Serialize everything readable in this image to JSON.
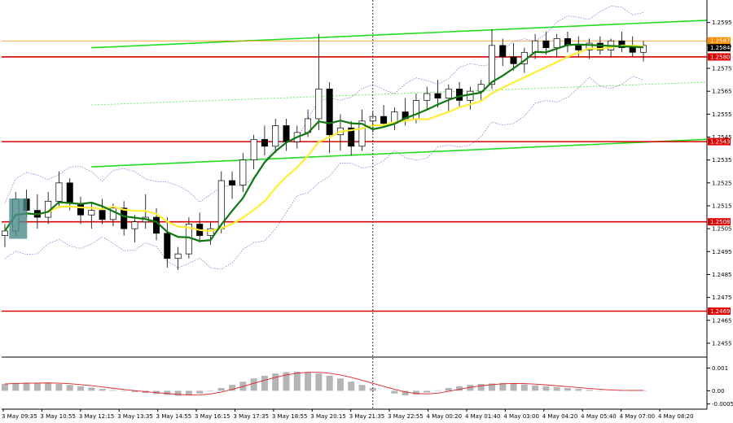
{
  "chart_data": {
    "type": "candlestick",
    "symbol": "",
    "main_panel": {
      "y_ticks": [
        "1.2595",
        "1.2585",
        "1.2575",
        "1.2565",
        "1.2555",
        "1.2545",
        "1.2535",
        "1.2525",
        "1.2515",
        "1.2505",
        "1.2495",
        "1.2485",
        "1.2475",
        "1.2465",
        "1.2455"
      ],
      "ylim": [
        1.245,
        1.2602
      ],
      "price_levels": [
        {
          "label": "1.2587",
          "value": 1.2587,
          "color": "#ff8c00",
          "style": "thin"
        },
        {
          "label": "1.2584",
          "value": 1.2584,
          "color": "#000000",
          "style": "current"
        },
        {
          "label": "1.2580",
          "value": 1.258,
          "color": "#dd0000",
          "style": "thick"
        },
        {
          "label": "1.2543",
          "value": 1.2543,
          "color": "#dd0000",
          "style": "thick"
        },
        {
          "label": "1.2508",
          "value": 1.2508,
          "color": "#dd0000",
          "style": "thick"
        },
        {
          "label": "1.2469",
          "value": 1.2469,
          "color": "#dd0000",
          "style": "thick"
        }
      ],
      "trend_lines": [
        {
          "color": "#22dd22",
          "style": "solid",
          "from": [
            8,
            1.2584
          ],
          "to": [
            75,
            1.2596
          ]
        },
        {
          "color": "#22dd22",
          "style": "solid",
          "from": [
            8,
            1.2532
          ],
          "to": [
            75,
            1.2544
          ]
        },
        {
          "color": "#66ee66",
          "style": "dotted",
          "from": [
            8,
            1.2559
          ],
          "to": [
            75,
            1.2569
          ]
        }
      ],
      "moving_averages": [
        {
          "color": "#ffee33",
          "period": 30
        },
        {
          "color": "#117711",
          "period": 14
        }
      ],
      "envelope": {
        "color": "#8866cc",
        "style": "dotted"
      },
      "candles": [
        {
          "o": 1.2502,
          "h": 1.2507,
          "l": 1.2497,
          "c": 1.2504
        },
        {
          "o": 1.2504,
          "h": 1.2521,
          "l": 1.2502,
          "c": 1.2518
        },
        {
          "o": 1.2518,
          "h": 1.2522,
          "l": 1.251,
          "c": 1.2513
        },
        {
          "o": 1.2513,
          "h": 1.252,
          "l": 1.2505,
          "c": 1.251
        },
        {
          "o": 1.251,
          "h": 1.2521,
          "l": 1.2507,
          "c": 1.2517
        },
        {
          "o": 1.2517,
          "h": 1.253,
          "l": 1.2514,
          "c": 1.2525
        },
        {
          "o": 1.2525,
          "h": 1.2527,
          "l": 1.2513,
          "c": 1.2516
        },
        {
          "o": 1.2516,
          "h": 1.2519,
          "l": 1.2507,
          "c": 1.2511
        },
        {
          "o": 1.2511,
          "h": 1.2516,
          "l": 1.2505,
          "c": 1.2513
        },
        {
          "o": 1.2513,
          "h": 1.2518,
          "l": 1.2507,
          "c": 1.2509
        },
        {
          "o": 1.2509,
          "h": 1.2516,
          "l": 1.2506,
          "c": 1.2514
        },
        {
          "o": 1.2514,
          "h": 1.2517,
          "l": 1.2502,
          "c": 1.2505
        },
        {
          "o": 1.2505,
          "h": 1.2511,
          "l": 1.2499,
          "c": 1.2508
        },
        {
          "o": 1.2508,
          "h": 1.252,
          "l": 1.2505,
          "c": 1.251
        },
        {
          "o": 1.251,
          "h": 1.2514,
          "l": 1.25,
          "c": 1.2503
        },
        {
          "o": 1.2503,
          "h": 1.251,
          "l": 1.2488,
          "c": 1.2492
        },
        {
          "o": 1.2492,
          "h": 1.2497,
          "l": 1.2487,
          "c": 1.2494
        },
        {
          "o": 1.2494,
          "h": 1.251,
          "l": 1.2492,
          "c": 1.2507
        },
        {
          "o": 1.2507,
          "h": 1.2512,
          "l": 1.2499,
          "c": 1.2502
        },
        {
          "o": 1.2502,
          "h": 1.2508,
          "l": 1.2498,
          "c": 1.2505
        },
        {
          "o": 1.2505,
          "h": 1.253,
          "l": 1.2503,
          "c": 1.2526
        },
        {
          "o": 1.2526,
          "h": 1.253,
          "l": 1.2518,
          "c": 1.2524
        },
        {
          "o": 1.2524,
          "h": 1.2538,
          "l": 1.2521,
          "c": 1.2535
        },
        {
          "o": 1.2535,
          "h": 1.2546,
          "l": 1.2531,
          "c": 1.2544
        },
        {
          "o": 1.2544,
          "h": 1.255,
          "l": 1.2537,
          "c": 1.2541
        },
        {
          "o": 1.2541,
          "h": 1.2553,
          "l": 1.2538,
          "c": 1.255
        },
        {
          "o": 1.255,
          "h": 1.2553,
          "l": 1.2539,
          "c": 1.2543
        },
        {
          "o": 1.2543,
          "h": 1.255,
          "l": 1.254,
          "c": 1.2547
        },
        {
          "o": 1.2547,
          "h": 1.2557,
          "l": 1.2545,
          "c": 1.2553
        },
        {
          "o": 1.2553,
          "h": 1.259,
          "l": 1.2548,
          "c": 1.2566
        },
        {
          "o": 1.2566,
          "h": 1.2569,
          "l": 1.2538,
          "c": 1.2546
        },
        {
          "o": 1.2546,
          "h": 1.2555,
          "l": 1.2539,
          "c": 1.2549
        },
        {
          "o": 1.2549,
          "h": 1.2552,
          "l": 1.2537,
          "c": 1.2541
        },
        {
          "o": 1.2541,
          "h": 1.2557,
          "l": 1.2539,
          "c": 1.2552
        },
        {
          "o": 1.2552,
          "h": 1.2556,
          "l": 1.2547,
          "c": 1.2554
        },
        {
          "o": 1.2554,
          "h": 1.2559,
          "l": 1.2549,
          "c": 1.2551
        },
        {
          "o": 1.2551,
          "h": 1.2558,
          "l": 1.2548,
          "c": 1.2556
        },
        {
          "o": 1.2556,
          "h": 1.2562,
          "l": 1.255,
          "c": 1.2553
        },
        {
          "o": 1.2553,
          "h": 1.2564,
          "l": 1.2551,
          "c": 1.2561
        },
        {
          "o": 1.2561,
          "h": 1.2567,
          "l": 1.2557,
          "c": 1.2564
        },
        {
          "o": 1.2564,
          "h": 1.257,
          "l": 1.2558,
          "c": 1.2562
        },
        {
          "o": 1.2562,
          "h": 1.2568,
          "l": 1.2556,
          "c": 1.2566
        },
        {
          "o": 1.2566,
          "h": 1.2569,
          "l": 1.2558,
          "c": 1.2561
        },
        {
          "o": 1.2561,
          "h": 1.2567,
          "l": 1.2557,
          "c": 1.2565
        },
        {
          "o": 1.2565,
          "h": 1.257,
          "l": 1.2561,
          "c": 1.2568
        },
        {
          "o": 1.2568,
          "h": 1.2592,
          "l": 1.2566,
          "c": 1.2585
        },
        {
          "o": 1.2585,
          "h": 1.2588,
          "l": 1.2576,
          "c": 1.258
        },
        {
          "o": 1.258,
          "h": 1.2586,
          "l": 1.2574,
          "c": 1.2577
        },
        {
          "o": 1.2577,
          "h": 1.2584,
          "l": 1.2573,
          "c": 1.2582
        },
        {
          "o": 1.2582,
          "h": 1.259,
          "l": 1.2579,
          "c": 1.2587
        },
        {
          "o": 1.2587,
          "h": 1.2591,
          "l": 1.2581,
          "c": 1.2584
        },
        {
          "o": 1.2584,
          "h": 1.259,
          "l": 1.258,
          "c": 1.2588
        },
        {
          "o": 1.2588,
          "h": 1.2591,
          "l": 1.2582,
          "c": 1.2585
        },
        {
          "o": 1.2585,
          "h": 1.2589,
          "l": 1.258,
          "c": 1.2583
        },
        {
          "o": 1.2583,
          "h": 1.2588,
          "l": 1.2579,
          "c": 1.2586
        },
        {
          "o": 1.2586,
          "h": 1.2589,
          "l": 1.2581,
          "c": 1.2583
        },
        {
          "o": 1.2583,
          "h": 1.2588,
          "l": 1.258,
          "c": 1.2587
        },
        {
          "o": 1.2587,
          "h": 1.2591,
          "l": 1.2582,
          "c": 1.2584
        },
        {
          "o": 1.2584,
          "h": 1.2589,
          "l": 1.258,
          "c": 1.2582
        },
        {
          "o": 1.2582,
          "h": 1.2587,
          "l": 1.2578,
          "c": 1.2585
        }
      ]
    },
    "indicator_panel": {
      "y_ticks": [
        "0.001",
        "0.00",
        "-0.00058"
      ],
      "ylim": [
        -0.0007,
        0.0013
      ],
      "histogram": [
        0.0003,
        0.00034,
        0.00036,
        0.00035,
        0.00033,
        0.0003,
        0.00026,
        0.0002,
        0.00014,
        8e-05,
        3e-05,
        -2e-05,
        -6e-05,
        -0.0001,
        -0.00014,
        -0.00018,
        -0.00022,
        -0.0002,
        -0.00012,
        -2e-05,
        0.00012,
        0.00026,
        0.0004,
        0.00054,
        0.00066,
        0.00076,
        0.00082,
        0.00084,
        0.00082,
        0.00076,
        0.00066,
        0.00054,
        0.0004,
        0.00026,
        0.00012,
        0.0,
        -0.00012,
        -0.0002,
        -0.00016,
        -8e-05,
        2e-05,
        0.00012,
        0.0002,
        0.00026,
        0.0003,
        0.00032,
        0.00034,
        0.00032,
        0.00028,
        0.00024,
        0.0002,
        0.00016,
        0.00012,
        8e-05,
        4e-05,
        2e-05,
        0.0,
        2e-05,
        3e-05,
        2e-05
      ],
      "signal_color": "#dd2222",
      "histogram_color": "#b5b5b5"
    },
    "x_ticks": [
      "3 May 09:35",
      "3 May 10:55",
      "3 May 12:15",
      "3 May 13:35",
      "3 May 14:55",
      "3 May 16:15",
      "3 May 17:35",
      "3 May 18:55",
      "3 May 20:15",
      "3 May 21:35",
      "3 May 22:55",
      "4 May 00:20",
      "4 May 01:40",
      "4 May 03:00",
      "4 May 04:20",
      "4 May 05:40",
      "4 May 07:00",
      "4 May 08:20"
    ],
    "vertical_marker_index": 34,
    "highlight_box_index": 1
  }
}
